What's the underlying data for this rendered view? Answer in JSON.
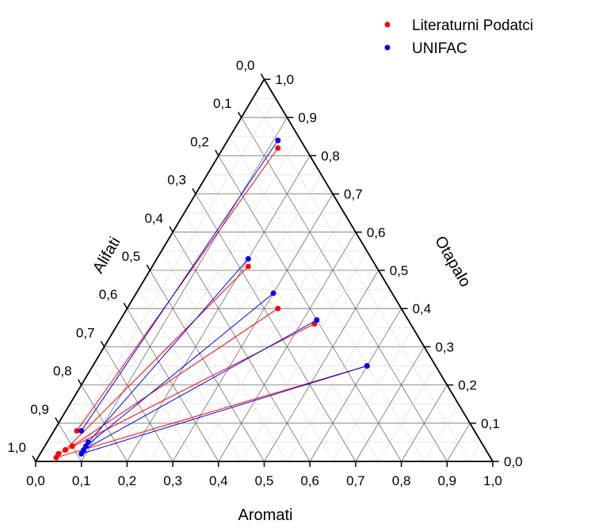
{
  "chart_data": {
    "type": "scatter",
    "subtype": "ternary",
    "axes": {
      "left": {
        "label": "Alifati",
        "range": [
          0,
          1
        ]
      },
      "right": {
        "label": "Otapalo",
        "range": [
          0,
          1
        ]
      },
      "bottom": {
        "label": "Aromati",
        "range": [
          0,
          1
        ]
      }
    },
    "ticks": [
      "0,0",
      "0,1",
      "0,2",
      "0,3",
      "0,4",
      "0,5",
      "0,6",
      "0,7",
      "0,8",
      "0,9",
      "1,0"
    ],
    "grid": true,
    "legend": {
      "position": "top-right",
      "entries": [
        {
          "name": "Literaturni Podatci",
          "color": "#ff0000"
        },
        {
          "name": "UNIFAC",
          "color": "#0000ff"
        }
      ]
    },
    "series": [
      {
        "name": "Literaturni Podatci",
        "color": "#ff0000",
        "tie_lines": [
          {
            "raffinate": {
              "Aromati": 0.05,
              "Otapalo": 0.08
            },
            "extract": {
              "Aromati": 0.12,
              "Otapalo": 0.82
            }
          },
          {
            "raffinate": {
              "Aromati": 0.05,
              "Otapalo": 0.03
            },
            "extract": {
              "Aromati": 0.21,
              "Otapalo": 0.51
            }
          },
          {
            "raffinate": {
              "Aromati": 0.06,
              "Otapalo": 0.04
            },
            "extract": {
              "Aromati": 0.33,
              "Otapalo": 0.4
            }
          },
          {
            "raffinate": {
              "Aromati": 0.04,
              "Otapalo": 0.02
            },
            "extract": {
              "Aromati": 0.43,
              "Otapalo": 0.36
            }
          },
          {
            "raffinate": {
              "Aromati": 0.04,
              "Otapalo": 0.01
            },
            "extract": {
              "Aromati": 0.6,
              "Otapalo": 0.25
            }
          }
        ]
      },
      {
        "name": "UNIFAC",
        "color": "#0000ff",
        "tie_lines": [
          {
            "raffinate": {
              "Aromati": 0.06,
              "Otapalo": 0.08
            },
            "extract": {
              "Aromati": 0.11,
              "Otapalo": 0.84
            }
          },
          {
            "raffinate": {
              "Aromati": 0.09,
              "Otapalo": 0.05
            },
            "extract": {
              "Aromati": 0.2,
              "Otapalo": 0.53
            }
          },
          {
            "raffinate": {
              "Aromati": 0.09,
              "Otapalo": 0.04
            },
            "extract": {
              "Aromati": 0.3,
              "Otapalo": 0.44
            }
          },
          {
            "raffinate": {
              "Aromati": 0.09,
              "Otapalo": 0.03
            },
            "extract": {
              "Aromati": 0.43,
              "Otapalo": 0.37
            }
          },
          {
            "raffinate": {
              "Aromati": 0.09,
              "Otapalo": 0.02
            },
            "extract": {
              "Aromati": 0.6,
              "Otapalo": 0.25
            }
          }
        ]
      }
    ]
  }
}
